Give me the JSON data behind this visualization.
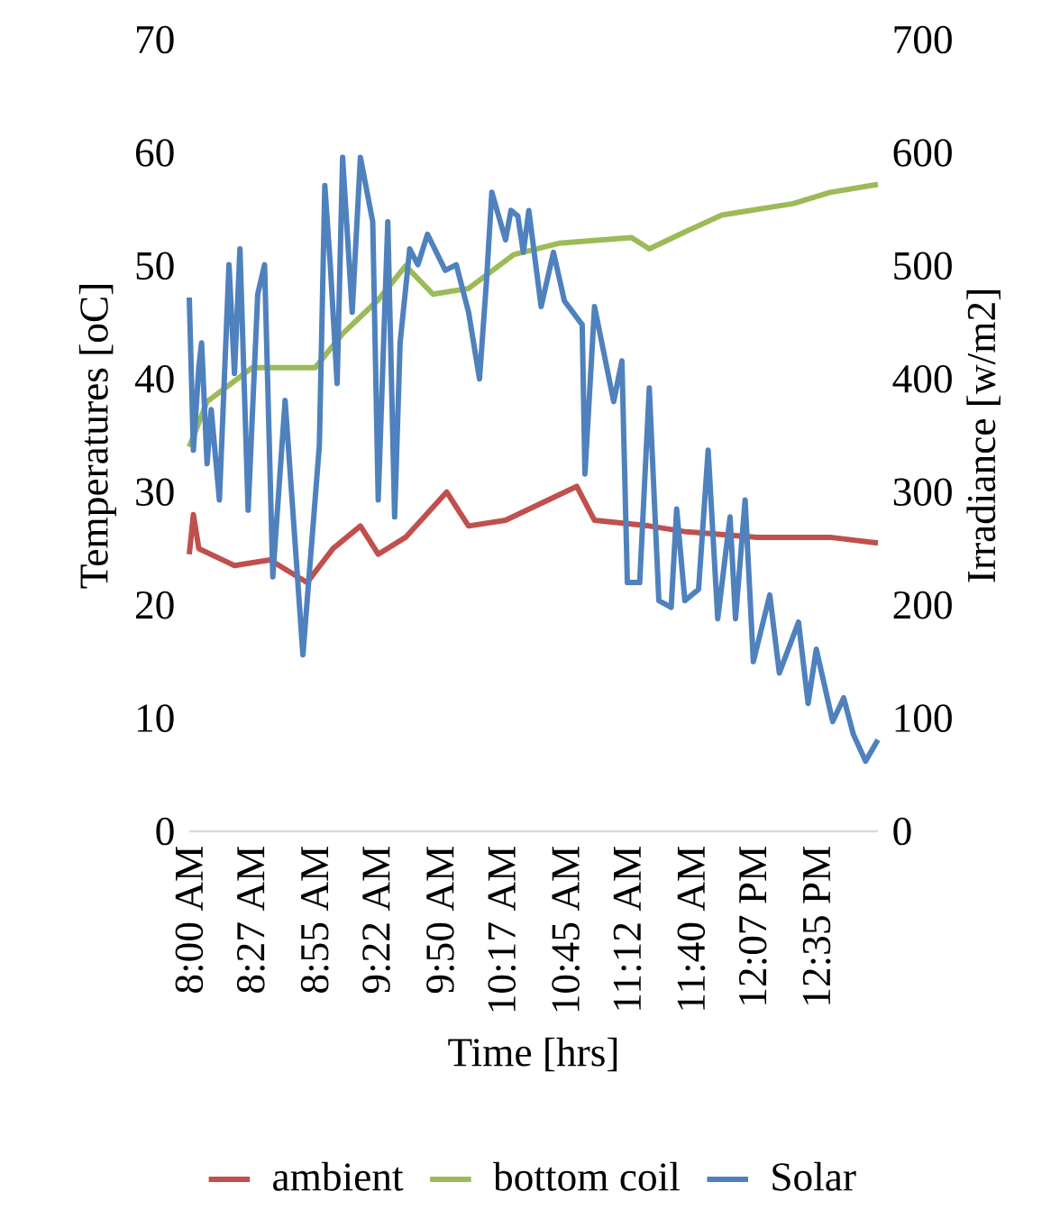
{
  "chart_data": {
    "type": "line",
    "xlabel": "Time [hrs]",
    "ylabel": "Temperatures [oC]",
    "y2label": "Irradiance [w/m2]",
    "xlim": [
      8,
      13.03
    ],
    "xticks": [
      {
        "value": 8,
        "label": "8:00 AM"
      },
      {
        "value": 8.45,
        "label": "8:27 AM"
      },
      {
        "value": 8.9167,
        "label": "8:55 AM"
      },
      {
        "value": 9.3667,
        "label": "9:22 AM"
      },
      {
        "value": 9.8333,
        "label": "9:50 AM"
      },
      {
        "value": 10.2833,
        "label": "10:17 AM"
      },
      {
        "value": 10.75,
        "label": "10:45 AM"
      },
      {
        "value": 11.2,
        "label": "11:12 AM"
      },
      {
        "value": 11.6667,
        "label": "11:40 AM"
      },
      {
        "value": 12.1167,
        "label": "12:07 PM"
      },
      {
        "value": 12.5833,
        "label": "12:35 PM"
      }
    ],
    "ylim": [
      0,
      70
    ],
    "yticks": [
      0,
      10,
      20,
      30,
      40,
      50,
      60,
      70
    ],
    "y2lim": [
      0,
      700
    ],
    "y2ticks": [
      0,
      100,
      200,
      300,
      400,
      500,
      600,
      700
    ],
    "legend": "bottom",
    "series": [
      {
        "name": "ambient",
        "color": "#c0504d",
        "x": [
          8.0,
          8.03,
          8.07,
          8.33,
          8.59,
          8.86,
          9.05,
          9.25,
          9.38,
          9.58,
          9.88,
          10.04,
          10.31,
          10.83,
          10.96,
          11.36,
          11.62,
          12.15,
          12.68,
          13.03
        ],
        "values": [
          24.5,
          28,
          25,
          23.5,
          24,
          22,
          25,
          27,
          24.5,
          26,
          30,
          27,
          27.5,
          30.5,
          27.5,
          27,
          26.5,
          26,
          26,
          25.5
        ]
      },
      {
        "name": "bottom coil",
        "color": "#9bbb59",
        "x": [
          8.0,
          8.13,
          8.46,
          8.72,
          8.92,
          9.12,
          9.38,
          9.58,
          9.78,
          10.04,
          10.37,
          10.7,
          11.23,
          11.36,
          11.62,
          11.89,
          12.15,
          12.41,
          12.68,
          13.03
        ],
        "values": [
          34,
          38,
          41,
          41,
          41,
          44,
          47,
          50,
          47.5,
          48,
          51,
          52,
          52.5,
          51.5,
          53,
          54.5,
          55,
          55.5,
          56.5,
          57.2
        ]
      },
      {
        "name": "Solar",
        "color": "#4f81bd",
        "axis": "y2",
        "x": [
          8.0,
          8.03,
          8.07,
          8.09,
          8.13,
          8.16,
          8.22,
          8.29,
          8.33,
          8.37,
          8.43,
          8.5,
          8.55,
          8.61,
          8.7,
          8.83,
          8.95,
          8.99,
          9.03,
          9.08,
          9.12,
          9.19,
          9.25,
          9.34,
          9.38,
          9.45,
          9.5,
          9.54,
          9.61,
          9.67,
          9.74,
          9.87,
          9.95,
          10.04,
          10.12,
          10.17,
          10.21,
          10.31,
          10.35,
          10.4,
          10.44,
          10.48,
          10.57,
          10.66,
          10.74,
          10.87,
          10.89,
          10.96,
          11.1,
          11.16,
          11.2,
          11.29,
          11.36,
          11.43,
          11.52,
          11.56,
          11.62,
          11.72,
          11.79,
          11.86,
          11.95,
          11.99,
          12.06,
          12.12,
          12.24,
          12.31,
          12.45,
          12.52,
          12.58,
          12.7,
          12.78,
          12.85,
          12.94,
          13.03
        ],
        "values": [
          472,
          337,
          411,
          432,
          325,
          373,
          293,
          501,
          405,
          515,
          284,
          475,
          501,
          225,
          381,
          156,
          341,
          571,
          501,
          396,
          596,
          459,
          596,
          539,
          293,
          539,
          278,
          432,
          515,
          501,
          528,
          496,
          501,
          459,
          400,
          485,
          565,
          523,
          549,
          544,
          512,
          549,
          464,
          512,
          469,
          448,
          316,
          464,
          380,
          416,
          220,
          220,
          392,
          204,
          198,
          285,
          204,
          214,
          337,
          188,
          278,
          188,
          293,
          150,
          209,
          140,
          185,
          113,
          161,
          97,
          118,
          86,
          62,
          81
        ]
      }
    ]
  }
}
